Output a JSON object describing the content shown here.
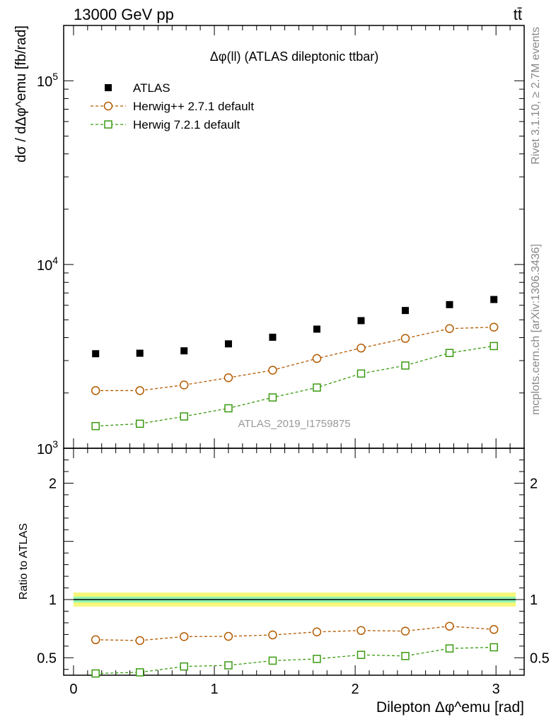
{
  "header": {
    "energy_label": "13000 GeV pp",
    "process_label": "tt̄",
    "side_label_top": "Rivet 3.1.10, ≥ 2.7M events",
    "side_label_bottom": "mcplots.cern.ch [arXiv:1306.3436]"
  },
  "chart_data": [
    {
      "type": "scatter",
      "panel": "main",
      "title": "Δφ(ll) (ATLAS dileptonic ttbar)",
      "watermark": "ATLAS_2019_I1759875",
      "ylabel": "dσ / dΔφ^emu [fb/rad]",
      "xlabel": "",
      "yscale": "log",
      "ylim": [
        1000,
        200000
      ],
      "xlim": [
        -0.07,
        3.2
      ],
      "yticks": [
        {
          "base": "10",
          "exp": "3"
        },
        {
          "base": "10",
          "exp": "4"
        },
        {
          "base": "10",
          "exp": "5"
        }
      ],
      "legend_position": "top-left",
      "x": [
        0.157,
        0.471,
        0.785,
        1.1,
        1.414,
        1.728,
        2.042,
        2.356,
        2.67,
        2.985
      ],
      "series": [
        {
          "name": "ATLAS",
          "color": "#000000",
          "marker": "filled-square",
          "line": "none",
          "values": [
            3270,
            3290,
            3390,
            3700,
            4020,
            4450,
            4950,
            5620,
            6050,
            6450
          ]
        },
        {
          "name": "Herwig++ 2.7.1 default",
          "color": "#b35a00",
          "marker": "open-circle",
          "line": "dashed",
          "values": [
            2060,
            2060,
            2210,
            2420,
            2660,
            3080,
            3510,
            3960,
            4480,
            4560
          ]
        },
        {
          "name": "Herwig 7.2.1 default",
          "color": "#3a9a10",
          "marker": "open-square",
          "line": "dashed",
          "values": [
            1320,
            1360,
            1490,
            1650,
            1890,
            2140,
            2550,
            2820,
            3300,
            3600
          ]
        }
      ]
    },
    {
      "type": "line",
      "panel": "ratio",
      "ylabel": "Ratio to ATLAS",
      "xlabel": "Dilepton Δφ^emu [rad]",
      "ylim": [
        0.35,
        2.3
      ],
      "xlim": [
        -0.07,
        3.2
      ],
      "yticks": [
        "0.5",
        "1",
        "2"
      ],
      "xticks": [
        "0",
        "1",
        "2",
        "3"
      ],
      "x": [
        0.157,
        0.471,
        0.785,
        1.1,
        1.414,
        1.728,
        2.042,
        2.356,
        2.67,
        2.985
      ],
      "reference": 1.0,
      "band_inner": [
        0.025,
        0.025,
        0.025,
        0.025,
        0.025,
        0.025,
        0.025,
        0.025,
        0.025,
        0.025
      ],
      "band_outer": [
        0.06,
        0.06,
        0.06,
        0.06,
        0.06,
        0.06,
        0.06,
        0.06,
        0.06,
        0.06
      ],
      "series": [
        {
          "name": "Herwig++ 2.7.1 default",
          "color": "#b35a00",
          "marker": "open-circle",
          "values": [
            0.655,
            0.648,
            0.682,
            0.684,
            0.696,
            0.722,
            0.734,
            0.729,
            0.771,
            0.743
          ]
        },
        {
          "name": "Herwig 7.2.1 default",
          "color": "#3a9a10",
          "marker": "open-square",
          "values": [
            0.365,
            0.375,
            0.425,
            0.435,
            0.475,
            0.49,
            0.525,
            0.515,
            0.58,
            0.59
          ]
        }
      ]
    }
  ]
}
